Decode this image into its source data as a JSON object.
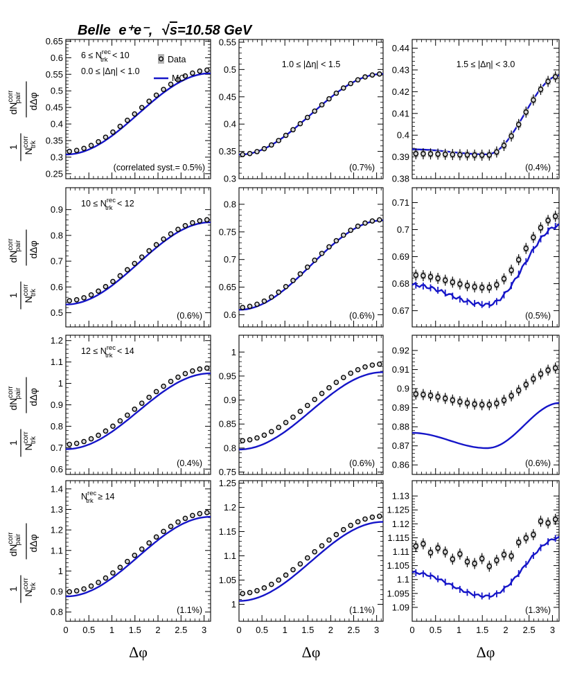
{
  "title": {
    "experiment": "Belle",
    "beam": "e⁺e⁻,",
    "energy_prefix": "s",
    "energy": "=10.58 GeV"
  },
  "xlabel": "Δφ",
  "ylabel": {
    "numerator": "1",
    "ntrk": "N",
    "ntrk_sup": "corr",
    "ntrk_sub": "trk",
    "dn": "dN",
    "dn_sup": "corr",
    "dn_sub": "pair",
    "dphi": "dΔφ"
  },
  "legend": {
    "data": "Data",
    "mc": "MC"
  },
  "row_labels": [
    {
      "prefix": "6 ≤ N",
      "sup": "rec",
      "sub": "trk",
      "suffix": " < 10"
    },
    {
      "prefix": "10 ≤ N",
      "sup": "rec",
      "sub": "trk",
      "suffix": " < 12"
    },
    {
      "prefix": "12 ≤ N",
      "sup": "rec",
      "sub": "trk",
      "suffix": " < 14"
    },
    {
      "prefix": "N",
      "sup": "rec",
      "sub": "trk",
      "suffix": " ≥ 14"
    }
  ],
  "col_labels": [
    "0.0 ≤ |Δη| < 1.0",
    "1.0 ≤ |Δη| < 1.5",
    "1.5 ≤ |Δη| < 3.0"
  ],
  "x_ticks": [
    "0",
    "0.5",
    "1",
    "1.5",
    "2",
    "2.5",
    "3"
  ],
  "chart_data": [
    {
      "type": "scatter",
      "row": 0,
      "col": 0,
      "ylim": [
        0.235,
        0.655
      ],
      "yticks": [
        "0.25",
        "0.3",
        "0.35",
        "0.4",
        "0.45",
        "0.5",
        "0.55",
        "0.6",
        "0.65"
      ],
      "syst": "(correlated syst.= 0.5%)",
      "data": {
        "min": 0.317,
        "max": 0.563,
        "offset": 0
      },
      "mc": {
        "min": 0.308,
        "max": 0.553,
        "wiggle": 0,
        "errors": false
      }
    },
    {
      "type": "scatter",
      "row": 0,
      "col": 1,
      "ylim": [
        0.3,
        0.555
      ],
      "yticks": [
        "0.3",
        "0.35",
        "0.4",
        "0.45",
        "0.5",
        "0.55"
      ],
      "syst": "(0.7%)",
      "data": {
        "min": 0.344,
        "max": 0.492,
        "offset": 0
      },
      "mc": {
        "min": 0.344,
        "max": 0.492,
        "wiggle": 0,
        "errors": false
      }
    },
    {
      "type": "scatter",
      "row": 0,
      "col": 2,
      "ylim": [
        0.38,
        0.444
      ],
      "yticks": [
        "0.38",
        "0.39",
        "0.4",
        "0.41",
        "0.42",
        "0.43",
        "0.44"
      ],
      "syst": "(0.4%)",
      "data": {
        "min": 0.3908,
        "max": 0.4272,
        "offset": 0,
        "dip": true,
        "start": 0.3915
      },
      "mc": {
        "min": 0.3912,
        "max": 0.4275,
        "wiggle": 0,
        "errors": false,
        "dip": true,
        "start": 0.3935
      }
    },
    {
      "type": "scatter",
      "row": 1,
      "col": 0,
      "ylim": [
        0.445,
        0.985
      ],
      "yticks": [
        "0.5",
        "0.6",
        "0.7",
        "0.8",
        "0.9"
      ],
      "syst": "(0.6%)",
      "data": {
        "min": 0.546,
        "max": 0.861,
        "offset": 0
      },
      "mc": {
        "min": 0.532,
        "max": 0.851,
        "wiggle": 0,
        "errors": false
      }
    },
    {
      "type": "scatter",
      "row": 1,
      "col": 1,
      "ylim": [
        0.578,
        0.83
      ],
      "yticks": [
        "0.6",
        "0.65",
        "0.7",
        "0.75",
        "0.8"
      ],
      "syst": "(0.6%)",
      "data": {
        "min": 0.613,
        "max": 0.772,
        "offset": 0
      },
      "mc": {
        "min": 0.609,
        "max": 0.771,
        "wiggle": 0,
        "errors": false
      }
    },
    {
      "type": "scatter",
      "row": 1,
      "col": 2,
      "ylim": [
        0.664,
        0.7155
      ],
      "yticks": [
        "0.67",
        "0.68",
        "0.69",
        "0.7",
        "0.71"
      ],
      "syst": "(0.5%)",
      "data": {
        "min": 0.6785,
        "max": 0.7052,
        "offset": 0,
        "dip": true,
        "start": 0.6832
      },
      "mc": {
        "min": 0.6722,
        "max": 0.7015,
        "wiggle": 0.0006,
        "errors": true,
        "dip": true,
        "start": 0.6795
      }
    },
    {
      "type": "scatter",
      "row": 2,
      "col": 0,
      "ylim": [
        0.575,
        1.225
      ],
      "yticks": [
        "0.6",
        "0.7",
        "0.8",
        "0.9",
        "1",
        "1.1",
        "1.2"
      ],
      "syst": "(0.4%)",
      "data": {
        "min": 0.715,
        "max": 1.072,
        "offset": 0
      },
      "mc": {
        "min": 0.693,
        "max": 1.047,
        "wiggle": 0,
        "errors": false
      }
    },
    {
      "type": "scatter",
      "row": 2,
      "col": 1,
      "ylim": [
        0.745,
        1.035
      ],
      "yticks": [
        "0.75",
        "0.8",
        "0.85",
        "0.9",
        "0.95",
        "1"
      ],
      "syst": "(0.6%)",
      "data": {
        "min": 0.815,
        "max": 0.975,
        "offset": 0
      },
      "mc": {
        "min": 0.797,
        "max": 0.958,
        "wiggle": 0,
        "errors": false
      }
    },
    {
      "type": "scatter",
      "row": 2,
      "col": 2,
      "ylim": [
        0.855,
        0.928
      ],
      "yticks": [
        "0.86",
        "0.87",
        "0.88",
        "0.89",
        "0.9",
        "0.91",
        "0.92"
      ],
      "syst": "(0.6%)",
      "data": {
        "min": 0.8915,
        "max": 0.911,
        "offset": 0,
        "dip": true,
        "start": 0.8972
      },
      "mc": {
        "min": 0.8688,
        "max": 0.8925,
        "wiggle": 0,
        "errors": false,
        "dip": true,
        "start": 0.8768
      }
    },
    {
      "type": "scatter",
      "row": 3,
      "col": 0,
      "ylim": [
        0.755,
        1.44
      ],
      "yticks": [
        "0.8",
        "0.9",
        "1",
        "1.1",
        "1.2",
        "1.3",
        "1.4"
      ],
      "syst": "(1.1%)",
      "data": {
        "min": 0.898,
        "max": 1.285,
        "offset": 0
      },
      "mc": {
        "min": 0.876,
        "max": 1.264,
        "wiggle": 0,
        "errors": false
      }
    },
    {
      "type": "scatter",
      "row": 3,
      "col": 1,
      "ylim": [
        0.965,
        1.255
      ],
      "yticks": [
        "1",
        "1.05",
        "1.1",
        "1.15",
        "1.2",
        "1.25"
      ],
      "syst": "(1.1%)",
      "data": {
        "min": 1.022,
        "max": 1.182,
        "offset": 0
      },
      "mc": {
        "min": 1.007,
        "max": 1.17,
        "wiggle": 0,
        "errors": false
      }
    },
    {
      "type": "scatter",
      "row": 3,
      "col": 2,
      "ylim": [
        1.085,
        1.1355
      ],
      "yticks": [
        "1.09",
        "1.095",
        "1.1",
        "1.105",
        "1.11",
        "1.115",
        "1.12",
        "1.125",
        "1.13"
      ],
      "syst": "(1.3%)",
      "data": {
        "min": 1.106,
        "max": 1.1222,
        "offset": 0.0025,
        "dip": true,
        "start": 1.112
      },
      "mc": {
        "min": 1.094,
        "max": 1.115,
        "wiggle": 0.0004,
        "errors": true,
        "dip": true,
        "start": 1.1025
      }
    }
  ],
  "colors": {
    "mc": "#1515c8",
    "data_fill": "#d6d6d6",
    "syst_box": "#b4b4b4"
  }
}
